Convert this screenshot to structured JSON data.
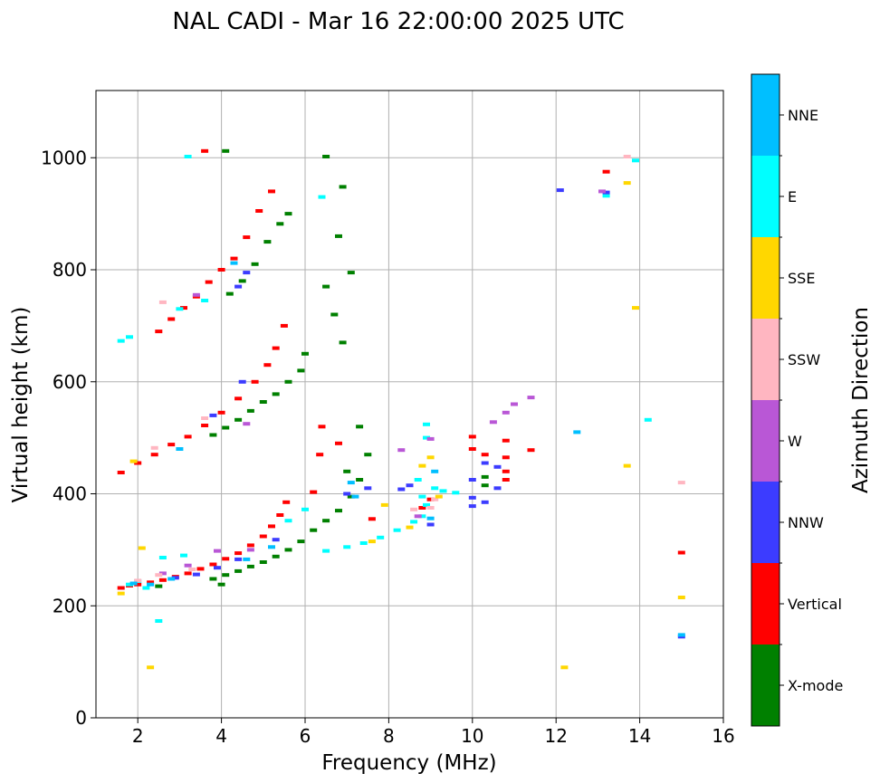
{
  "chart_data": {
    "type": "scatter",
    "title": "NAL CADI - Mar 16 22:00:00 2025 UTC",
    "xlabel": "Frequency (MHz)",
    "ylabel": "Virtual height (km)",
    "xlim": [
      1,
      16
    ],
    "ylim": [
      0,
      1120
    ],
    "xticks": [
      2,
      4,
      6,
      8,
      10,
      12,
      14,
      16
    ],
    "yticks": [
      0,
      200,
      400,
      600,
      800,
      1000
    ],
    "grid": true,
    "colorbar": {
      "label": "Azimuth Direction",
      "categories": [
        {
          "name": "X-mode",
          "color": "#008000"
        },
        {
          "name": "Vertical",
          "color": "#ff0000"
        },
        {
          "name": "NNW",
          "color": "#3c3cff"
        },
        {
          "name": "W",
          "color": "#b957d6"
        },
        {
          "name": "SSW",
          "color": "#ffb6c1"
        },
        {
          "name": "SSE",
          "color": "#ffd700"
        },
        {
          "name": "E",
          "color": "#00ffff"
        },
        {
          "name": "NNE",
          "color": "#00bfff"
        }
      ]
    },
    "series": [
      {
        "name": "Vertical",
        "points": [
          [
            1.6,
            232
          ],
          [
            1.8,
            236
          ],
          [
            2.0,
            238
          ],
          [
            2.3,
            242
          ],
          [
            2.6,
            246
          ],
          [
            2.9,
            252
          ],
          [
            3.2,
            258
          ],
          [
            3.5,
            266
          ],
          [
            3.8,
            274
          ],
          [
            4.1,
            284
          ],
          [
            4.4,
            294
          ],
          [
            4.7,
            308
          ],
          [
            5.0,
            324
          ],
          [
            5.2,
            342
          ],
          [
            5.4,
            362
          ],
          [
            5.55,
            385
          ],
          [
            1.6,
            438
          ],
          [
            2.0,
            455
          ],
          [
            2.4,
            470
          ],
          [
            2.8,
            488
          ],
          [
            3.2,
            502
          ],
          [
            3.6,
            522
          ],
          [
            4.0,
            545
          ],
          [
            4.4,
            570
          ],
          [
            4.8,
            600
          ],
          [
            5.1,
            630
          ],
          [
            5.3,
            660
          ],
          [
            5.5,
            700
          ],
          [
            2.5,
            690
          ],
          [
            2.8,
            712
          ],
          [
            3.1,
            732
          ],
          [
            3.4,
            752
          ],
          [
            3.7,
            778
          ],
          [
            4.0,
            800
          ],
          [
            4.3,
            820
          ],
          [
            4.6,
            858
          ],
          [
            4.9,
            905
          ],
          [
            5.2,
            940
          ],
          [
            3.6,
            1012
          ],
          [
            6.4,
            520
          ],
          [
            6.35,
            470
          ],
          [
            6.2,
            403
          ],
          [
            6.8,
            490
          ],
          [
            7.6,
            355
          ],
          [
            10.0,
            502
          ],
          [
            10.0,
            480
          ],
          [
            10.3,
            470
          ],
          [
            10.8,
            495
          ],
          [
            10.8,
            465
          ],
          [
            10.8,
            440
          ],
          [
            10.8,
            425
          ],
          [
            11.4,
            478
          ],
          [
            13.2,
            975
          ],
          [
            15.0,
            295
          ],
          [
            8.8,
            375
          ],
          [
            9.0,
            390
          ]
        ]
      },
      {
        "name": "X-mode",
        "points": [
          [
            3.8,
            248
          ],
          [
            4.1,
            255
          ],
          [
            4.4,
            262
          ],
          [
            4.7,
            270
          ],
          [
            5.0,
            278
          ],
          [
            5.3,
            288
          ],
          [
            5.6,
            300
          ],
          [
            5.9,
            315
          ],
          [
            6.2,
            335
          ],
          [
            6.5,
            352
          ],
          [
            6.8,
            370
          ],
          [
            7.1,
            395
          ],
          [
            7.3,
            425
          ],
          [
            3.8,
            505
          ],
          [
            4.1,
            518
          ],
          [
            4.4,
            532
          ],
          [
            4.7,
            548
          ],
          [
            5.0,
            564
          ],
          [
            5.3,
            578
          ],
          [
            5.6,
            600
          ],
          [
            5.9,
            620
          ],
          [
            6.0,
            650
          ],
          [
            4.2,
            757
          ],
          [
            4.5,
            780
          ],
          [
            4.8,
            810
          ],
          [
            5.1,
            850
          ],
          [
            5.4,
            882
          ],
          [
            5.6,
            900
          ],
          [
            6.5,
            770
          ],
          [
            6.7,
            720
          ],
          [
            6.9,
            670
          ],
          [
            7.1,
            795
          ],
          [
            6.8,
            860
          ],
          [
            6.9,
            948
          ],
          [
            7.3,
            520
          ],
          [
            7.0,
            440
          ],
          [
            7.5,
            470
          ],
          [
            10.3,
            430
          ],
          [
            10.3,
            415
          ],
          [
            4.1,
            1012
          ],
          [
            6.5,
            1002
          ],
          [
            2.5,
            235
          ],
          [
            4.0,
            238
          ]
        ]
      },
      {
        "name": "E",
        "points": [
          [
            1.8,
            238
          ],
          [
            2.2,
            232
          ],
          [
            2.0,
            244
          ],
          [
            2.6,
            286
          ],
          [
            3.1,
            290
          ],
          [
            6.5,
            298
          ],
          [
            7.0,
            305
          ],
          [
            7.4,
            312
          ],
          [
            7.8,
            322
          ],
          [
            8.2,
            335
          ],
          [
            8.6,
            350
          ],
          [
            8.8,
            360
          ],
          [
            8.9,
            380
          ],
          [
            8.9,
            500
          ],
          [
            8.9,
            524
          ],
          [
            8.7,
            425
          ],
          [
            8.8,
            395
          ],
          [
            9.1,
            410
          ],
          [
            9.3,
            405
          ],
          [
            9.6,
            402
          ],
          [
            6.4,
            930
          ],
          [
            3.0,
            730
          ],
          [
            3.6,
            745
          ],
          [
            3.2,
            1002
          ],
          [
            5.6,
            352
          ],
          [
            6.0,
            372
          ],
          [
            1.6,
            673
          ],
          [
            1.8,
            680
          ],
          [
            2.5,
            173
          ],
          [
            13.2,
            932
          ],
          [
            13.9,
            995
          ],
          [
            14.2,
            532
          ]
        ]
      },
      {
        "name": "NNW",
        "points": [
          [
            2.9,
            250
          ],
          [
            3.4,
            256
          ],
          [
            3.9,
            268
          ],
          [
            4.4,
            283
          ],
          [
            5.3,
            318
          ],
          [
            8.3,
            408
          ],
          [
            8.5,
            415
          ],
          [
            9.0,
            345
          ],
          [
            10.0,
            393
          ],
          [
            10.0,
            378
          ],
          [
            10.0,
            425
          ],
          [
            10.3,
            455
          ],
          [
            10.3,
            385
          ],
          [
            10.6,
            448
          ],
          [
            10.6,
            410
          ],
          [
            4.4,
            770
          ],
          [
            4.6,
            795
          ],
          [
            4.5,
            600
          ],
          [
            3.8,
            540
          ],
          [
            12.1,
            942
          ],
          [
            13.2,
            938
          ],
          [
            15.0,
            145
          ],
          [
            7.0,
            400
          ],
          [
            7.5,
            410
          ]
        ]
      },
      {
        "name": "W",
        "points": [
          [
            2.6,
            258
          ],
          [
            3.2,
            272
          ],
          [
            3.9,
            298
          ],
          [
            4.7,
            300
          ],
          [
            8.3,
            478
          ],
          [
            9.0,
            498
          ],
          [
            10.5,
            528
          ],
          [
            10.8,
            545
          ],
          [
            11.0,
            560
          ],
          [
            11.4,
            572
          ],
          [
            8.7,
            360
          ],
          [
            3.4,
            755
          ],
          [
            4.6,
            525
          ],
          [
            13.1,
            940
          ]
        ]
      },
      {
        "name": "SSW",
        "points": [
          [
            2.0,
            245
          ],
          [
            2.5,
            255
          ],
          [
            3.3,
            265
          ],
          [
            8.6,
            372
          ],
          [
            9.0,
            375
          ],
          [
            9.1,
            390
          ],
          [
            2.6,
            742
          ],
          [
            13.7,
            1002
          ],
          [
            15.0,
            420
          ],
          [
            2.4,
            482
          ],
          [
            3.6,
            535
          ]
        ]
      },
      {
        "name": "SSE",
        "points": [
          [
            1.6,
            222
          ],
          [
            2.1,
            303
          ],
          [
            8.5,
            340
          ],
          [
            8.8,
            450
          ],
          [
            9.0,
            465
          ],
          [
            9.2,
            395
          ],
          [
            7.9,
            380
          ],
          [
            7.6,
            315
          ],
          [
            2.3,
            90
          ],
          [
            12.2,
            90
          ],
          [
            13.7,
            955
          ],
          [
            13.9,
            732
          ],
          [
            13.7,
            450
          ],
          [
            15.0,
            215
          ],
          [
            1.9,
            458
          ]
        ]
      },
      {
        "name": "NNE",
        "points": [
          [
            1.9,
            240
          ],
          [
            2.3,
            238
          ],
          [
            2.8,
            248
          ],
          [
            4.6,
            283
          ],
          [
            5.2,
            305
          ],
          [
            7.2,
            395
          ],
          [
            7.1,
            420
          ],
          [
            9.0,
            356
          ],
          [
            9.1,
            440
          ],
          [
            12.5,
            510
          ],
          [
            15.0,
            148
          ],
          [
            4.3,
            812
          ],
          [
            3.0,
            480
          ]
        ]
      }
    ]
  }
}
